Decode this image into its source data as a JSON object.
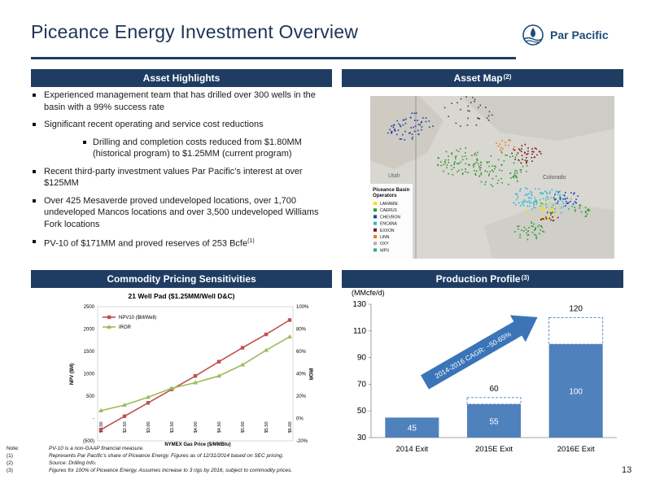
{
  "header": {
    "title": "Piceance Energy Investment Overview",
    "logo_text": "Par Pacific"
  },
  "sections": {
    "asset_highlights": "Asset Highlights",
    "asset_map": "Asset Map",
    "asset_map_sup": "(2)",
    "commodity": "Commodity Pricing Sensitivities",
    "production": "Production Profile",
    "production_sup": "(3)"
  },
  "bullets": [
    "Experienced management team that has drilled over 300 wells in the basin with a 99% success rate",
    "Significant recent operating and service cost reductions",
    "Drilling and completion costs reduced from $1.80MM (historical program) to $1.25MM (current program)",
    "Recent third-party investment values Par Pacific’s interest at over $125MM",
    "Over 425 Mesaverde proved undeveloped locations, over 1,700 undeveloped Mancos locations and over 3,500 undeveloped Williams Fork locations",
    "PV-10 of $171MM and proved reserves of 253 Bcfe"
  ],
  "bullet_last_sup": "(1)",
  "map": {
    "legend_title": "Piceance Basin Operators",
    "label_utah": "Utah",
    "label_colorado": "Colorado",
    "operators": [
      {
        "name": "LARAMIE",
        "color": "#f2e600"
      },
      {
        "name": "CAERUS",
        "color": "#2e9a2e"
      },
      {
        "name": "CHEVRON",
        "color": "#1a3ea8"
      },
      {
        "name": "ENCANA",
        "color": "#29b8d6"
      },
      {
        "name": "EXXON",
        "color": "#7a1515"
      },
      {
        "name": "LINN",
        "color": "#e87d1a"
      },
      {
        "name": "OXY",
        "color": "#b0b0b0"
      },
      {
        "name": "WPX",
        "color": "#36a878"
      }
    ]
  },
  "chart_data": [
    {
      "type": "line",
      "title": "21 Well Pad ($1.25MM/Well D&C)",
      "xlabel": "NYMEX Gas Price ($/MMBtu)",
      "ylabel": "NPV ($M)",
      "y2label": "IROR",
      "categories": [
        "$2.00",
        "$2.50",
        "$3.00",
        "$3.50",
        "$4.00",
        "$4.50",
        "$5.00",
        "$5.50",
        "$6.00"
      ],
      "ylim": [
        -500,
        2500
      ],
      "y_ticks": [
        "2500",
        "2000",
        "1500",
        "1000",
        "500",
        "-",
        "(500)"
      ],
      "y2lim": [
        -0.2,
        1.0
      ],
      "y2_ticks": [
        "100%",
        "80%",
        "60%",
        "40%",
        "20%",
        "0%",
        "-20%"
      ],
      "series": [
        {
          "name": "NPV10 ($M/Well)",
          "axis": "left",
          "color": "#c0504d",
          "values": [
            -250,
            50,
            350,
            650,
            950,
            1270,
            1580,
            1880,
            2200
          ]
        },
        {
          "name": "IROR",
          "axis": "right",
          "color": "#9bbb59",
          "values": [
            0.07,
            0.12,
            0.19,
            0.27,
            0.32,
            0.38,
            0.48,
            0.61,
            0.73
          ]
        }
      ],
      "legend": "top-left",
      "grid": false
    },
    {
      "type": "bar",
      "ylabel": "(MMcfe/d)",
      "categories": [
        "2014 Exit",
        "2015E Exit",
        "2016E Exit"
      ],
      "series": [
        {
          "name": "",
          "color": "#4f81bd",
          "values": [
            45,
            55,
            100
          ]
        }
      ],
      "dashed_targets": [
        null,
        60,
        120
      ],
      "data_labels": [
        "45",
        "55",
        "100"
      ],
      "target_labels": [
        "",
        "60",
        "120"
      ],
      "ylim": [
        30,
        130
      ],
      "y_ticks": [
        "130",
        "110",
        "90",
        "70",
        "50",
        "30"
      ],
      "annotation": "2014-2016 CAGR: ~50-65%",
      "grid": false
    }
  ],
  "footnotes": [
    {
      "k": "Note:",
      "v": "PV-10 is a non-GAAP financial measure."
    },
    {
      "k": "(1)",
      "v": "Represents Par Pacific’s share of Piceance Energy. Figures as of 12/31/2014 based on SEC pricing."
    },
    {
      "k": "(2)",
      "v": "Source: Drilling Info."
    },
    {
      "k": "(3)",
      "v": "Figures for 100% of Piceance Energy. Assumes increase to 3 rigs by 2016, subject to commodity prices."
    }
  ],
  "page_number": "13"
}
